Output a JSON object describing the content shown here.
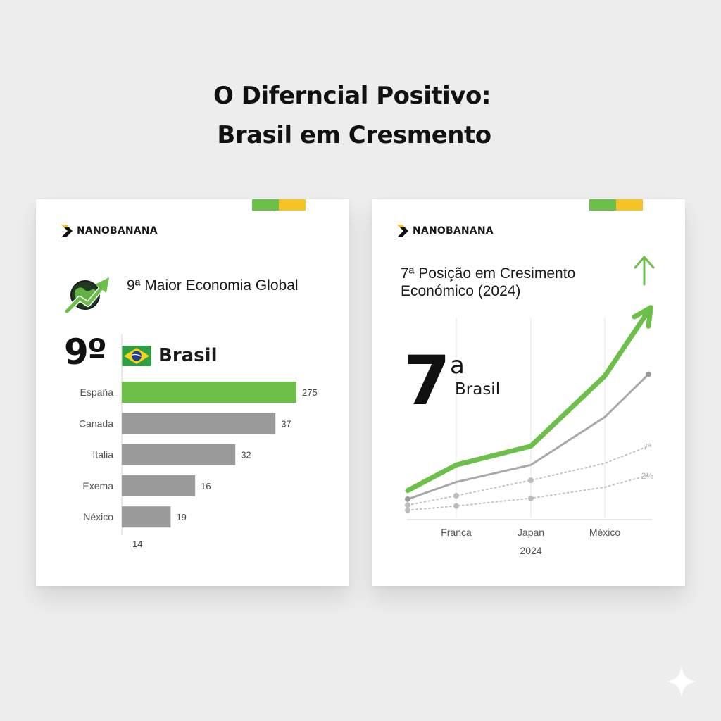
{
  "title": {
    "line1": "O Diferncial Positivo:",
    "line2": "Brasil em Cresmento"
  },
  "colors": {
    "green": "#6cc04a",
    "yellow": "#f6c324",
    "gray_bar": "#9a9a9a",
    "gray_line": "#a8a8a8",
    "dotted": "#c4c4c4",
    "dark": "#111111"
  },
  "left_card": {
    "brand": "NANOBANANA",
    "brand_icon": "chevron-logo-icon",
    "growth_icon": "globe-growth-arrow-icon",
    "heading": "9ª Maior Economia Global",
    "rank": "9º",
    "flag_icon": "brazil-flag-icon",
    "country": "Brasil"
  },
  "right_card": {
    "brand": "NANOBANANA",
    "brand_icon": "chevron-logo-icon",
    "heading_line1": "7ª Posição em Cresimento",
    "heading_line2": "Económico (2024)",
    "rank_number": "7",
    "rank_suffix": "a",
    "country": "Brasil",
    "up_arrow_icon": "arrow-up-icon"
  },
  "chart_data": [
    {
      "type": "bar",
      "orientation": "horizontal",
      "categories": [
        "España",
        "Canada",
        "Italia",
        "Exema",
        "Néxico"
      ],
      "values": [
        275,
        37,
        32,
        16,
        19
      ],
      "value_labels": [
        "275",
        "37",
        "32",
        "16",
        "19"
      ],
      "bar_fraction": [
        1.0,
        0.88,
        0.65,
        0.42,
        0.28
      ],
      "highlight_index": 0,
      "footnote": "14",
      "grid": false,
      "legend": "none"
    },
    {
      "type": "line",
      "x": [
        "Franca",
        "Japan",
        "México"
      ],
      "x_caption": "2024",
      "grid": "vertical",
      "series": [
        {
          "style": "solid-green-arrow",
          "points": [
            [
              0,
              1.7
            ],
            [
              1,
              3.2
            ],
            [
              2,
              4.3
            ],
            [
              3,
              8.4
            ],
            [
              4,
              12.2
            ]
          ]
        },
        {
          "style": "solid-gray",
          "points": [
            [
              0,
              1.2
            ],
            [
              1,
              2.2
            ],
            [
              2,
              3.2
            ],
            [
              3,
              6.0
            ],
            [
              4,
              8.5
            ]
          ]
        },
        {
          "style": "dotted-gray",
          "points": [
            [
              0,
              0.85
            ],
            [
              1,
              1.4
            ],
            [
              2,
              2.3
            ],
            [
              3,
              3.3
            ],
            [
              4,
              4.3
            ]
          ],
          "end_label": "7ª"
        },
        {
          "style": "dotted-gray",
          "points": [
            [
              0,
              0.55
            ],
            [
              1,
              0.8
            ],
            [
              2,
              1.25
            ],
            [
              3,
              1.9
            ],
            [
              4,
              2.6
            ]
          ],
          "end_label": "2⅛"
        }
      ],
      "x_index_range": [
        0,
        4
      ],
      "y_range": [
        0,
        14
      ],
      "legend": "none"
    }
  ]
}
